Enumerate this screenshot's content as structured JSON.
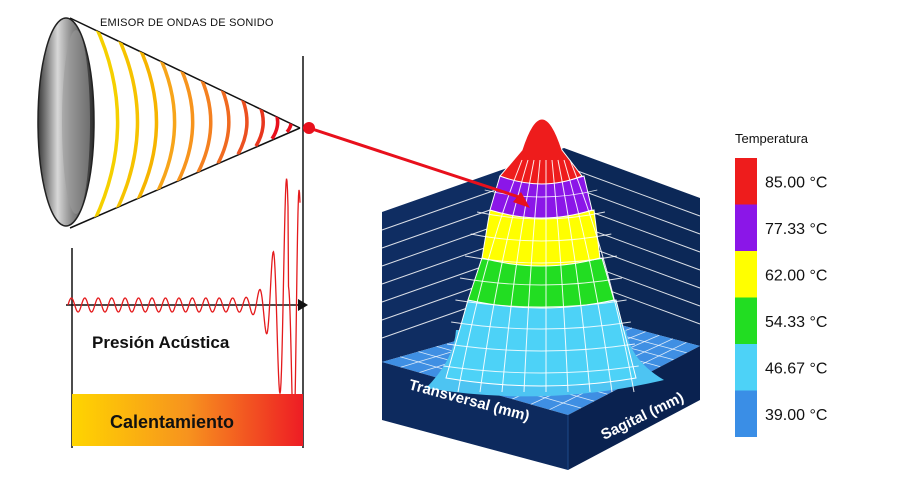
{
  "labels": {
    "emitter": "EMISOR DE ONDAS DE SONIDO",
    "acoustic_pressure": "Presión Acústica",
    "heating": "Calentamiento",
    "transversal_axis": "Transversal (mm)",
    "sagittal_axis": "Sagital (mm)"
  },
  "legend": {
    "title": "Temperatura",
    "items": [
      {
        "label": "85.00 °C",
        "color": "#ee1c1c"
      },
      {
        "label": "77.33 °C",
        "color": "#8b16e8"
      },
      {
        "label": "62.00 °C",
        "color": "#ffff00"
      },
      {
        "label": "54.33 °C",
        "color": "#22dd22"
      },
      {
        "label": "46.67 °C",
        "color": "#4dd2f7"
      },
      {
        "label": "39.00 °C",
        "color": "#3a8ee6"
      }
    ]
  },
  "colors": {
    "box_dark": "#0d2a5e",
    "floor": "#3f8fe3",
    "focus_red": "#e8101c",
    "wave_yellow": "#f5d000"
  },
  "icons": {
    "emitter": "transducer-dish-icon",
    "focus": "focal-point-icon",
    "arrow": "arrow-icon"
  }
}
